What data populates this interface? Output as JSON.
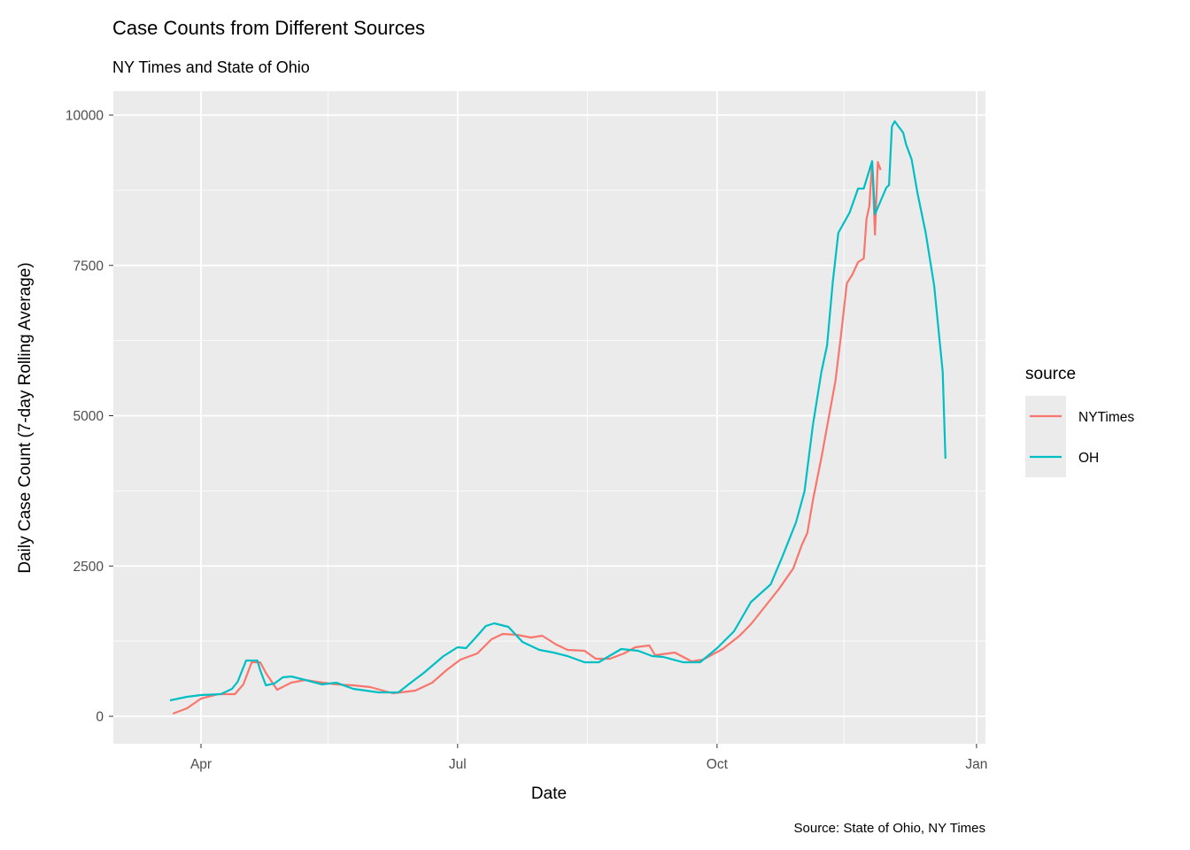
{
  "chart_data": {
    "type": "line",
    "title": "Case Counts from Different Sources",
    "subtitle": "NY Times and State of Ohio",
    "xlabel": "Date",
    "ylabel": "Daily Case Count (7-day Rolling Average)",
    "caption": "Source: State of Ohio, NY Times",
    "xlim": [
      "2020-03-18",
      "2021-01-03"
    ],
    "ylim": [
      -430,
      10400
    ],
    "x_ticks": [
      {
        "date": "2020-04-01",
        "label": "Apr"
      },
      {
        "date": "2020-07-01",
        "label": "Jul"
      },
      {
        "date": "2020-10-01",
        "label": "Oct"
      },
      {
        "date": "2021-01-01",
        "label": "Jan"
      }
    ],
    "y_ticks": [
      0,
      2500,
      5000,
      7500,
      10000
    ],
    "grid": true,
    "legend": {
      "title": "source",
      "position": "right"
    },
    "series": [
      {
        "name": "NYTimes",
        "color": "#F8766D",
        "points": [
          [
            "2020-03-22",
            44
          ],
          [
            "2020-03-27",
            133
          ],
          [
            "2020-04-01",
            295
          ],
          [
            "2020-04-07",
            368
          ],
          [
            "2020-04-13",
            368
          ],
          [
            "2020-04-16",
            530
          ],
          [
            "2020-04-19",
            898
          ],
          [
            "2020-04-22",
            898
          ],
          [
            "2020-04-24",
            722
          ],
          [
            "2020-04-28",
            442
          ],
          [
            "2020-05-03",
            560
          ],
          [
            "2020-05-08",
            604
          ],
          [
            "2020-05-12",
            574
          ],
          [
            "2020-05-19",
            530
          ],
          [
            "2020-05-25",
            515
          ],
          [
            "2020-05-31",
            486
          ],
          [
            "2020-06-08",
            383
          ],
          [
            "2020-06-16",
            427
          ],
          [
            "2020-06-22",
            560
          ],
          [
            "2020-06-27",
            766
          ],
          [
            "2020-07-02",
            943
          ],
          [
            "2020-07-08",
            1046
          ],
          [
            "2020-07-13",
            1281
          ],
          [
            "2020-07-17",
            1370
          ],
          [
            "2020-07-22",
            1355
          ],
          [
            "2020-07-27",
            1311
          ],
          [
            "2020-07-31",
            1340
          ],
          [
            "2020-08-05",
            1193
          ],
          [
            "2020-08-09",
            1105
          ],
          [
            "2020-08-15",
            1090
          ],
          [
            "2020-08-19",
            957
          ],
          [
            "2020-08-24",
            957
          ],
          [
            "2020-08-29",
            1046
          ],
          [
            "2020-09-02",
            1149
          ],
          [
            "2020-09-07",
            1178
          ],
          [
            "2020-09-09",
            1016
          ],
          [
            "2020-09-16",
            1060
          ],
          [
            "2020-09-22",
            913
          ],
          [
            "2020-09-26",
            943
          ],
          [
            "2020-10-03",
            1119
          ],
          [
            "2020-10-09",
            1340
          ],
          [
            "2020-10-13",
            1532
          ],
          [
            "2020-10-18",
            1826
          ],
          [
            "2020-10-23",
            2121
          ],
          [
            "2020-10-28",
            2459
          ],
          [
            "2020-10-31",
            2842
          ],
          [
            "2020-11-02",
            3049
          ],
          [
            "2020-11-04",
            3594
          ],
          [
            "2020-11-07",
            4300
          ],
          [
            "2020-11-12",
            5582
          ],
          [
            "2020-11-14",
            6362
          ],
          [
            "2020-11-16",
            7201
          ],
          [
            "2020-11-18",
            7349
          ],
          [
            "2020-11-20",
            7555
          ],
          [
            "2020-11-22",
            7614
          ],
          [
            "2020-11-23",
            8277
          ],
          [
            "2020-11-24",
            8483
          ],
          [
            "2020-11-25",
            9219
          ],
          [
            "2020-11-26",
            8012
          ],
          [
            "2020-11-27",
            9219
          ],
          [
            "2020-11-28",
            9087
          ]
        ]
      },
      {
        "name": "OH",
        "color": "#00BFC4",
        "points": [
          [
            "2020-03-21",
            265
          ],
          [
            "2020-03-27",
            324
          ],
          [
            "2020-04-01",
            353
          ],
          [
            "2020-04-08",
            368
          ],
          [
            "2020-04-12",
            456
          ],
          [
            "2020-04-14",
            574
          ],
          [
            "2020-04-17",
            928
          ],
          [
            "2020-04-21",
            928
          ],
          [
            "2020-04-22",
            766
          ],
          [
            "2020-04-24",
            515
          ],
          [
            "2020-04-27",
            545
          ],
          [
            "2020-04-30",
            648
          ],
          [
            "2020-05-03",
            663
          ],
          [
            "2020-05-08",
            604
          ],
          [
            "2020-05-14",
            530
          ],
          [
            "2020-05-19",
            560
          ],
          [
            "2020-05-25",
            456
          ],
          [
            "2020-06-03",
            398
          ],
          [
            "2020-06-10",
            398
          ],
          [
            "2020-06-14",
            545
          ],
          [
            "2020-06-19",
            722
          ],
          [
            "2020-06-26",
            1001
          ],
          [
            "2020-07-01",
            1149
          ],
          [
            "2020-07-04",
            1134
          ],
          [
            "2020-07-08",
            1340
          ],
          [
            "2020-07-11",
            1502
          ],
          [
            "2020-07-14",
            1546
          ],
          [
            "2020-07-19",
            1487
          ],
          [
            "2020-07-24",
            1237
          ],
          [
            "2020-07-30",
            1105
          ],
          [
            "2020-08-04",
            1060
          ],
          [
            "2020-08-09",
            1001
          ],
          [
            "2020-08-15",
            898
          ],
          [
            "2020-08-20",
            898
          ],
          [
            "2020-08-28",
            1119
          ],
          [
            "2020-09-03",
            1090
          ],
          [
            "2020-09-08",
            1001
          ],
          [
            "2020-09-12",
            987
          ],
          [
            "2020-09-19",
            898
          ],
          [
            "2020-09-25",
            898
          ],
          [
            "2020-10-01",
            1134
          ],
          [
            "2020-10-07",
            1414
          ],
          [
            "2020-10-13",
            1900
          ],
          [
            "2020-10-20",
            2194
          ],
          [
            "2020-10-24",
            2636
          ],
          [
            "2020-10-29",
            3225
          ],
          [
            "2020-11-01",
            3741
          ],
          [
            "2020-11-04",
            4845
          ],
          [
            "2020-11-07",
            5729
          ],
          [
            "2020-11-09",
            6170
          ],
          [
            "2020-11-11",
            7201
          ],
          [
            "2020-11-13",
            8041
          ],
          [
            "2020-11-17",
            8380
          ],
          [
            "2020-11-20",
            8777
          ],
          [
            "2020-11-22",
            8777
          ],
          [
            "2020-11-25",
            9234
          ],
          [
            "2020-11-26",
            8350
          ],
          [
            "2020-11-30",
            8792
          ],
          [
            "2020-12-01",
            8836
          ],
          [
            "2020-12-02",
            9808
          ],
          [
            "2020-12-03",
            9897
          ],
          [
            "2020-12-06",
            9705
          ],
          [
            "2020-12-07",
            9514
          ],
          [
            "2020-12-09",
            9264
          ],
          [
            "2020-12-11",
            8718
          ],
          [
            "2020-12-14",
            8041
          ],
          [
            "2020-12-17",
            7157
          ],
          [
            "2020-12-20",
            5729
          ],
          [
            "2020-12-21",
            4286
          ]
        ]
      }
    ]
  }
}
